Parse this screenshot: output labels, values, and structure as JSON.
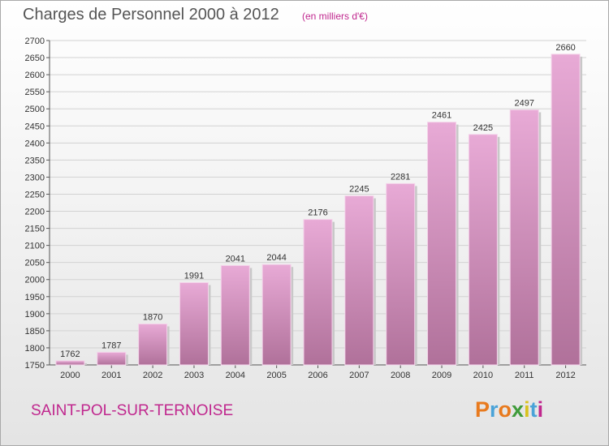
{
  "title": "Charges de Personnel 2000 à 2012",
  "subtitle": "(en milliers d'€)",
  "location": "SAINT-POL-SUR-TERNOISE",
  "logo": {
    "letters": [
      "P",
      "r",
      "o",
      "x",
      "i",
      "t",
      "i"
    ],
    "colors": [
      "#e87a1e",
      "#4aa3d8",
      "#e87a1e",
      "#3f9b3a",
      "#d8c21e",
      "#4aa3d8",
      "#c0278e"
    ]
  },
  "colors": {
    "bar_top": "#e8aad6",
    "bar_bottom": "#b0719a",
    "accent": "#c0278e"
  },
  "chart_data": {
    "type": "bar",
    "categories": [
      "2000",
      "2001",
      "2002",
      "2003",
      "2004",
      "2005",
      "2006",
      "2007",
      "2008",
      "2009",
      "2010",
      "2011",
      "2012"
    ],
    "values": [
      1762,
      1787,
      1870,
      1991,
      2041,
      2044,
      2176,
      2245,
      2281,
      2461,
      2425,
      2497,
      2660
    ],
    "ylim": [
      1750,
      2700
    ],
    "yticks": [
      1750,
      1800,
      1850,
      1900,
      1950,
      2000,
      2050,
      2100,
      2150,
      2200,
      2250,
      2300,
      2350,
      2400,
      2450,
      2500,
      2550,
      2600,
      2650,
      2700
    ],
    "grid": true,
    "xlabel": "",
    "ylabel": ""
  }
}
